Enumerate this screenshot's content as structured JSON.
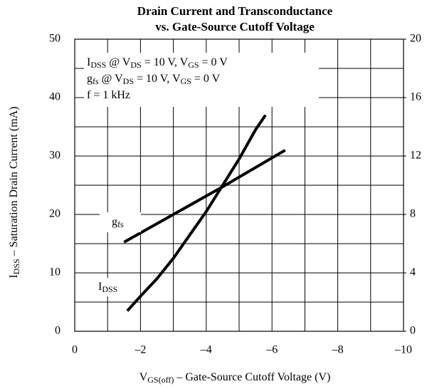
{
  "chart_data": {
    "type": "line",
    "title": [
      "Drain Current and Transconductance",
      "vs. Gate-Source Cutoff Voltage"
    ],
    "xlabel": [
      {
        "text": "V"
      },
      {
        "text": "GS(off)",
        "sub": true
      },
      {
        "text": " – Gate-Source Cutoff Voltage (V)"
      }
    ],
    "ylabel": [
      {
        "text": "I"
      },
      {
        "text": "DSS",
        "sub": true
      },
      {
        "text": " – Saturation Drain Current (mA)"
      }
    ],
    "xlim": [
      0,
      -10
    ],
    "xticks": [
      0,
      {
        "value": -2,
        "label": "–2"
      },
      {
        "value": -4,
        "label": "–4"
      },
      {
        "value": -6,
        "label": "–6"
      },
      {
        "value": -8,
        "label": "–8"
      },
      {
        "value": -10,
        "label": "–10"
      }
    ],
    "xminorticks": [
      -1,
      -3,
      -5,
      -7,
      -9
    ],
    "ylim": [
      0,
      50
    ],
    "yticks": [
      0,
      10,
      20,
      30,
      40,
      50
    ],
    "yminorticks": [
      5,
      15,
      25,
      35,
      45
    ],
    "y2lim": [
      0,
      20
    ],
    "y2ticks": [
      0,
      4,
      8,
      12,
      16,
      20
    ],
    "grid": true,
    "color": "#000000",
    "annotations": [
      [
        {
          "text": "I"
        },
        {
          "text": "DSS",
          "sub": true
        },
        {
          "text": " @ V"
        },
        {
          "text": "DS",
          "sub": true
        },
        {
          "text": " = 10 V, V"
        },
        {
          "text": "GS",
          "sub": true
        },
        {
          "text": " = 0 V"
        }
      ],
      [
        {
          "text": "g"
        },
        {
          "text": "fs",
          "sub": true
        },
        {
          "text": " @ V"
        },
        {
          "text": "DS",
          "sub": true
        },
        {
          "text": " = 10 V, V"
        },
        {
          "text": "GS",
          "sub": true
        },
        {
          "text": " = 0 V"
        }
      ],
      [
        {
          "text": "f = 1 kHz"
        }
      ]
    ],
    "series": [
      {
        "label": [
          {
            "text": "I"
          },
          {
            "text": "DSS",
            "sub": true
          }
        ],
        "x": [
          -1.6,
          -2,
          -2.5,
          -3,
          -3.5,
          -4,
          -4.5,
          -5,
          -5.5,
          -5.8
        ],
        "values": [
          3.5,
          6,
          9,
          12.5,
          16.5,
          20.5,
          25,
          29.5,
          34.5,
          37
        ]
      },
      {
        "label": [
          {
            "text": "g"
          },
          {
            "text": "fs",
            "sub": true
          }
        ],
        "axis": "y2",
        "x": [
          -1.5,
          -3,
          -4.5,
          -6.4
        ],
        "values": [
          6.1,
          8.0,
          9.9,
          12.4
        ]
      }
    ]
  }
}
